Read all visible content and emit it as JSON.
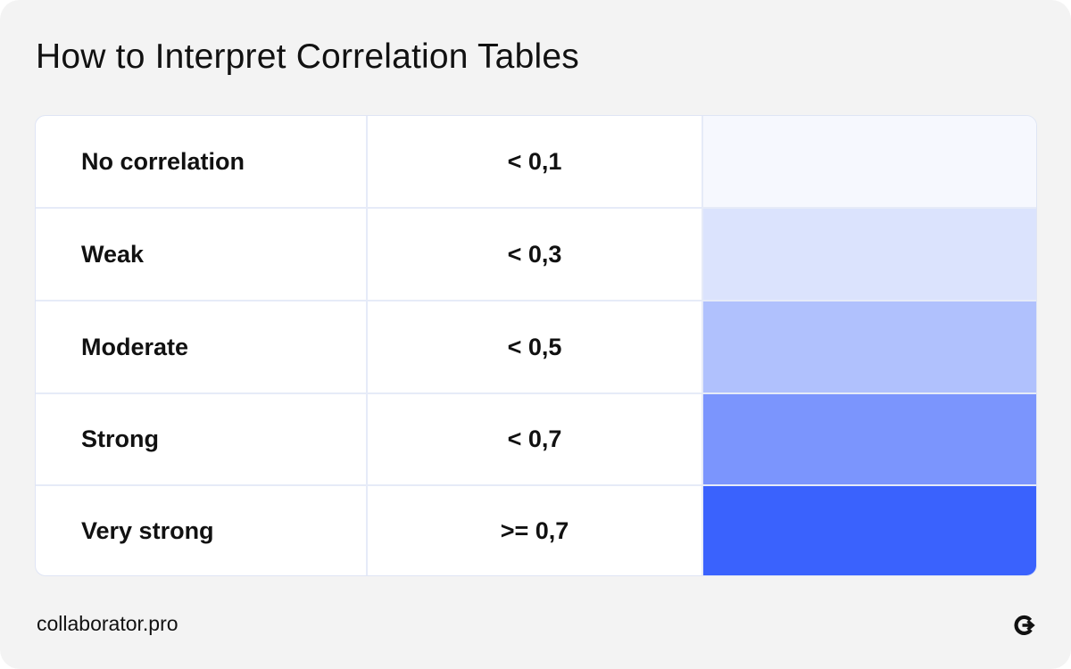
{
  "header": {
    "title": "How to Interpret Correlation Tables"
  },
  "table": {
    "rows": [
      {
        "label": "No correlation",
        "value": "< 0,1",
        "color": "#f6f8fe"
      },
      {
        "label": "Weak",
        "value": "< 0,3",
        "color": "#dbe3fd"
      },
      {
        "label": "Moderate",
        "value": "< 0,5",
        "color": "#b0c1fd"
      },
      {
        "label": "Strong",
        "value": "< 0,7",
        "color": "#7b95fd"
      },
      {
        "label": "Very strong",
        "value": ">= 0,7",
        "color": "#3a62fd"
      }
    ]
  },
  "footer": {
    "site": "collaborator.pro",
    "logo_icon": "collaborator-logo-icon"
  }
}
